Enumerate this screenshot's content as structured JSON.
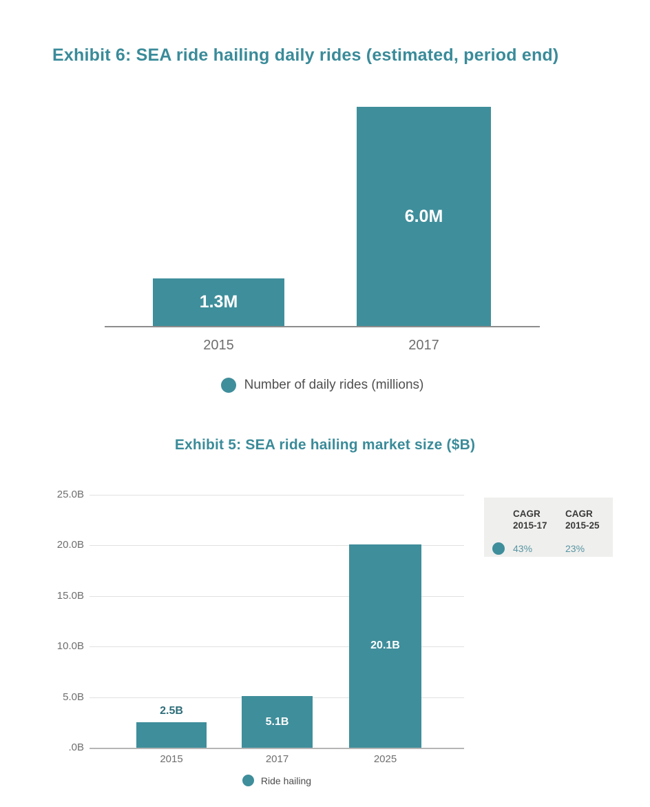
{
  "colors": {
    "bar_teal": "#3F8E9B",
    "title_teal": "#3A8B99",
    "value_label_white": "#FFFFFF",
    "value_label_dark_teal": "#2E6D79",
    "axis_text_gray": "#6E6E6E",
    "gridline_gray": "#E0E0E0",
    "cagr_box_bg": "#EFEFED",
    "cagr_header_text": "#3B3B3B",
    "cagr_value_teal": "#5795A2"
  },
  "chart_data": [
    {
      "type": "bar",
      "title": "Exhibit 6: SEA ride hailing daily rides (estimated, period end)",
      "categories": [
        "2015",
        "2017"
      ],
      "values": [
        1.3,
        6.0
      ],
      "value_labels": [
        "1.3M",
        "6.0M"
      ],
      "legend": [
        "Number of daily rides (millions)"
      ],
      "legend_position": "bottom-center",
      "ylabel": "",
      "xlabel": "",
      "ylim": [
        0,
        6.0
      ],
      "grid": false,
      "bar_color": "#3F8E9B"
    },
    {
      "type": "bar",
      "title": "Exhibit 5: SEA ride hailing market size ($B)",
      "categories": [
        "2015",
        "2017",
        "2025"
      ],
      "values": [
        2.5,
        5.1,
        20.1
      ],
      "value_labels": [
        "2.5B",
        "5.1B",
        "20.1B"
      ],
      "ytick_labels": [
        "25.0B",
        "20.0B",
        "15.0B",
        "10.0B",
        "5.0B",
        ".0B"
      ],
      "legend": [
        "Ride hailing"
      ],
      "legend_position": "bottom-center",
      "ylabel": "",
      "xlabel": "",
      "ylim": [
        0,
        25
      ],
      "grid": true,
      "bar_color": "#3F8E9B",
      "annotation_table": {
        "headers": [
          "CAGR 2015-17",
          "CAGR 2015-25"
        ],
        "values": [
          "43%",
          "23%"
        ]
      }
    }
  ]
}
